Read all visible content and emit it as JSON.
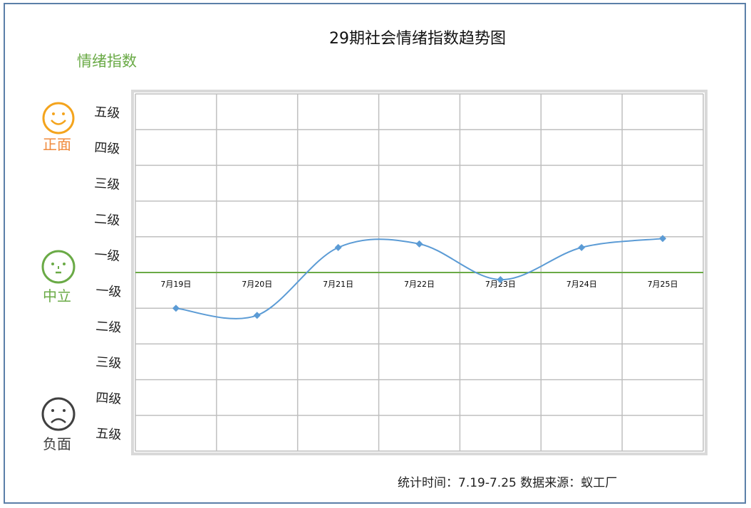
{
  "chart_data": {
    "type": "line",
    "title": "29期社会情绪指数趋势图",
    "ylabel": "情绪指数",
    "categories": [
      "7月19日",
      "7月20日",
      "7月21日",
      "7月22日",
      "7月23日",
      "7月24日",
      "7月25日"
    ],
    "series": [
      {
        "values": [
          -1.0,
          -1.2,
          0.7,
          0.8,
          -0.2,
          0.7,
          0.95
        ]
      }
    ],
    "ylim": [
      -5,
      5
    ],
    "yticks_positive": [
      "五级",
      "四级",
      "三级",
      "二级",
      "一级"
    ],
    "yticks_negative": [
      "一级",
      "二级",
      "三级",
      "四级",
      "五级"
    ],
    "zero_line_color": "#6aaa46",
    "line_color": "#5b9bd5",
    "grid": true,
    "smooth": true
  },
  "moods": {
    "positive": {
      "label": "正面",
      "icon": "smiley-face-icon",
      "color": "#f4a41d",
      "label_color": "#f08a3c"
    },
    "neutral": {
      "label": "中立",
      "icon": "neutral-face-icon",
      "color": "#6aaa46",
      "label_color": "#6aaa46"
    },
    "negative": {
      "label": "负面",
      "icon": "sad-face-icon",
      "color": "#404040",
      "label_color": "#404040"
    }
  },
  "footer": {
    "source": "统计时间：7.19-7.25 数据来源：蚁工厂"
  }
}
